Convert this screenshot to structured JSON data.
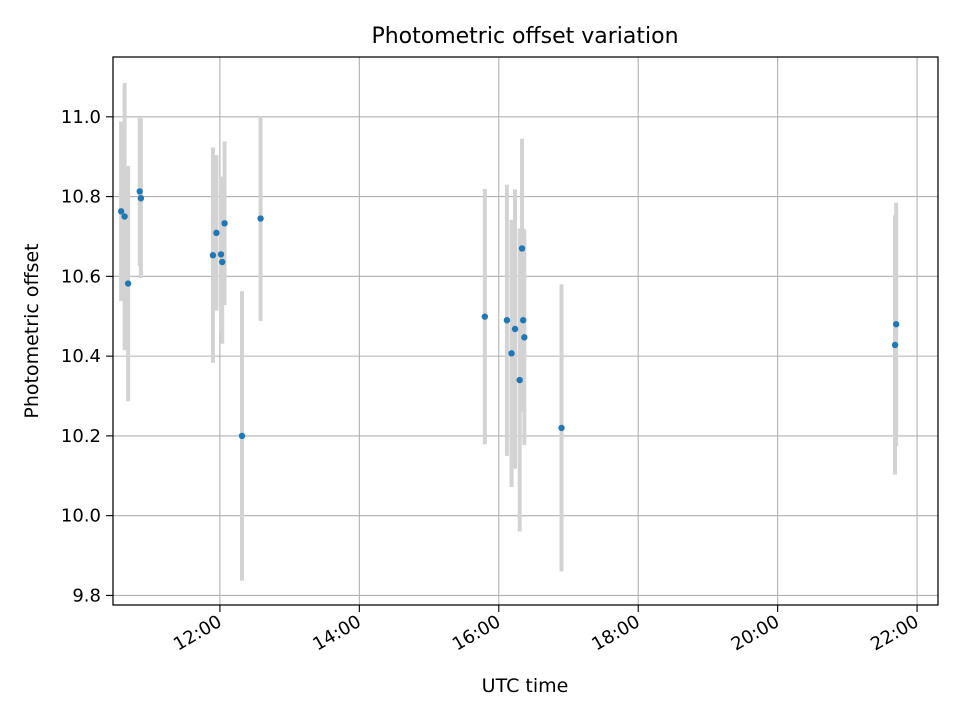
{
  "chart_data": {
    "type": "scatter",
    "title": "Photometric offset variation",
    "xlabel": "UTC time",
    "ylabel": "Photometric offset",
    "x_tick_labels": [
      "12:00",
      "14:00",
      "16:00",
      "18:00",
      "20:00",
      "22:00"
    ],
    "x_ticks": [
      "12:00",
      "14:00",
      "16:00",
      "18:00",
      "20:00",
      "22:00"
    ],
    "xlim": [
      "10:28",
      "22:18"
    ],
    "y_ticks": [
      9.8,
      10.0,
      10.2,
      10.4,
      10.6,
      10.8,
      11.0
    ],
    "y_tick_labels": [
      "9.8",
      "10.0",
      "10.2",
      "10.4",
      "10.6",
      "10.8",
      "11.0"
    ],
    "ylim": [
      9.776,
      11.15
    ],
    "grid": true,
    "marker_color": "#1f77b4",
    "errorbar_color": "#d3d3d3",
    "points": [
      {
        "x": "10:35",
        "y": 10.763,
        "err": 0.225
      },
      {
        "x": "10:38",
        "y": 10.75,
        "err": 0.335
      },
      {
        "x": "10:41",
        "y": 10.582,
        "err": 0.295
      },
      {
        "x": "10:51",
        "y": 10.813,
        "err": 0.187
      },
      {
        "x": "10:52",
        "y": 10.796,
        "err": 0.2
      },
      {
        "x": "11:54",
        "y": 10.653,
        "err": 0.27
      },
      {
        "x": "11:57",
        "y": 10.709,
        "err": 0.195
      },
      {
        "x": "12:01",
        "y": 10.655,
        "err": 0.195
      },
      {
        "x": "12:02",
        "y": 10.636,
        "err": 0.205
      },
      {
        "x": "12:04",
        "y": 10.733,
        "err": 0.205
      },
      {
        "x": "12:19",
        "y": 10.2,
        "err": 0.363
      },
      {
        "x": "12:35",
        "y": 10.745,
        "err": 0.257
      },
      {
        "x": "15:48",
        "y": 10.499,
        "err": 0.32
      },
      {
        "x": "16:07",
        "y": 10.49,
        "err": 0.34
      },
      {
        "x": "16:11",
        "y": 10.407,
        "err": 0.335
      },
      {
        "x": "16:14",
        "y": 10.468,
        "err": 0.35
      },
      {
        "x": "16:18",
        "y": 10.34,
        "err": 0.38
      },
      {
        "x": "16:20",
        "y": 10.67,
        "err": 0.275
      },
      {
        "x": "16:21",
        "y": 10.49,
        "err": 0.23
      },
      {
        "x": "16:22",
        "y": 10.447,
        "err": 0.27
      },
      {
        "x": "16:54",
        "y": 10.22,
        "err": 0.36
      },
      {
        "x": "21:41",
        "y": 10.428,
        "err": 0.325
      },
      {
        "x": "21:42",
        "y": 10.48,
        "err": 0.305
      }
    ]
  }
}
